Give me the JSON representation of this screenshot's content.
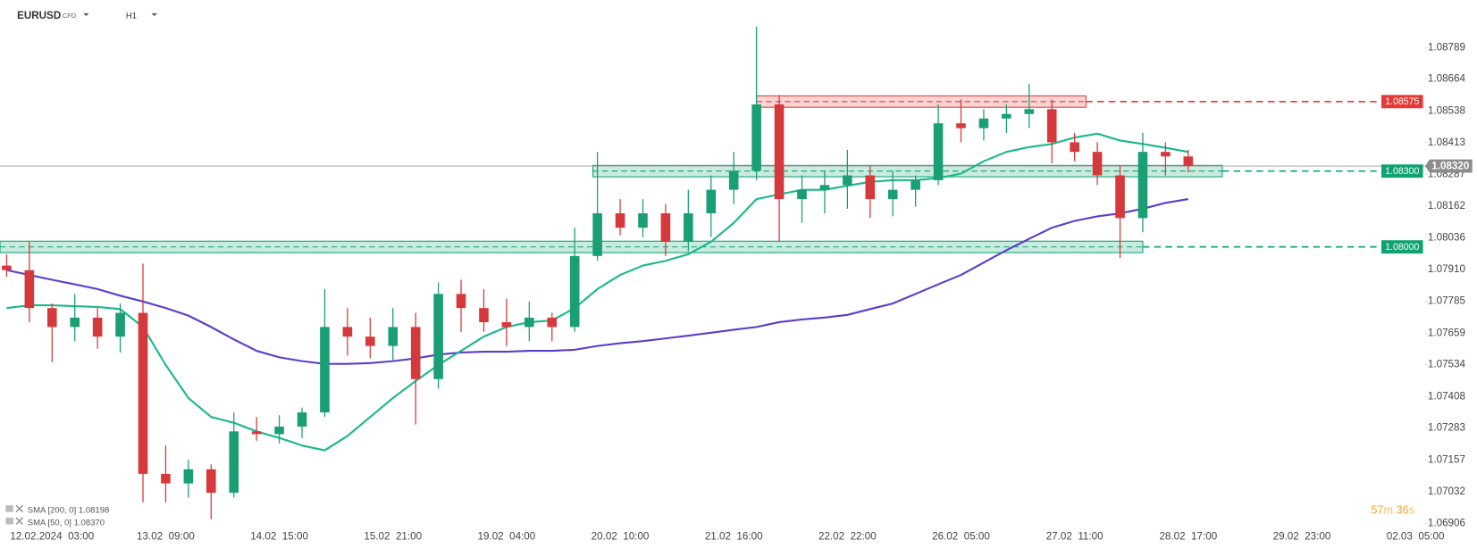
{
  "chart_data": {
    "type": "candlestick",
    "symbol": "EURUSD",
    "instrument": "CFD",
    "timeframe": "H1",
    "open": [
      1.07926,
      1.07908,
      1.07758,
      1.07683,
      1.0772,
      1.07645,
      1.07739,
      1.07102,
      1.07064,
      1.0712,
      1.07027,
      1.0727,
      1.07259,
      1.07289,
      1.07345,
      1.07683,
      1.07645,
      1.07608,
      1.07683,
      1.07477,
      1.07814,
      1.07758,
      1.07702,
      1.07683,
      1.0772,
      1.07683,
      1.07964,
      1.08133,
      1.08076,
      1.08133,
      1.0802,
      1.08133,
      1.08226,
      1.08301,
      1.08564,
      1.08189,
      1.08226,
      1.08245,
      1.08283,
      1.08189,
      1.08226,
      1.08264,
      1.08489,
      1.0847,
      1.08508,
      1.08526,
      1.08545,
      1.08414,
      1.08376,
      1.08283,
      1.08114,
      1.08376,
      1.08358
    ],
    "high": [
      1.07971,
      1.0802,
      1.07776,
      1.07814,
      1.07758,
      1.07776,
      1.07934,
      1.07214,
      1.07158,
      1.07139,
      1.07345,
      1.07327,
      1.07334,
      1.07364,
      1.07833,
      1.07758,
      1.0772,
      1.07758,
      1.07739,
      1.07859,
      1.0787,
      1.07833,
      1.07795,
      1.07784,
      1.07739,
      1.08076,
      1.08376,
      1.08189,
      1.08189,
      1.0817,
      1.08226,
      1.08283,
      1.08376,
      1.08872,
      1.08601,
      1.08283,
      1.08301,
      1.08384,
      1.0832,
      1.08301,
      1.08283,
      1.08564,
      1.08583,
      1.08545,
      1.08564,
      1.08646,
      1.08583,
      1.08451,
      1.08414,
      1.0832,
      1.08451,
      1.08414,
      1.08384
    ],
    "low": [
      1.07882,
      1.07702,
      1.07544,
      1.07627,
      1.07597,
      1.07582,
      1.06989,
      1.06989,
      1.07008,
      1.06922,
      1.07008,
      1.07233,
      1.07222,
      1.07244,
      1.07327,
      1.0757,
      1.07559,
      1.07552,
      1.07297,
      1.07439,
      1.07664,
      1.07664,
      1.07608,
      1.07627,
      1.07627,
      1.07664,
      1.07945,
      1.08046,
      1.08039,
      1.07964,
      1.07983,
      1.08039,
      1.0817,
      1.08264,
      1.0802,
      1.08095,
      1.08133,
      1.08151,
      1.08114,
      1.08121,
      1.08159,
      1.08245,
      1.08414,
      1.08421,
      1.08451,
      1.0847,
      1.08331,
      1.08339,
      1.08245,
      1.07956,
      1.08058,
      1.08283,
      1.08294
    ],
    "close": [
      1.07908,
      1.07758,
      1.07683,
      1.0772,
      1.07645,
      1.07739,
      1.07102,
      1.07064,
      1.0712,
      1.07027,
      1.0727,
      1.07259,
      1.07289,
      1.07345,
      1.07683,
      1.07645,
      1.07608,
      1.07683,
      1.07477,
      1.07814,
      1.07758,
      1.07702,
      1.07683,
      1.0772,
      1.07683,
      1.07964,
      1.08133,
      1.08076,
      1.08133,
      1.0802,
      1.08133,
      1.08226,
      1.08301,
      1.08564,
      1.08189,
      1.08226,
      1.08245,
      1.08283,
      1.08189,
      1.08226,
      1.08264,
      1.08489,
      1.0847,
      1.08508,
      1.08526,
      1.08545,
      1.08414,
      1.08376,
      1.08283,
      1.08114,
      1.08376,
      1.08358,
      1.0832
    ],
    "xtick_labels": [
      "12.02.2024  03:00",
      "13.02  09:00",
      "14.02  15:00",
      "15.02  21:00",
      "19.02  04:00",
      "20.02  10:00",
      "21.02  16:00",
      "22.02  22:00",
      "26.02  05:00",
      "27.02  11:00",
      "28.02  17:00",
      "29.02  23:00",
      "02.03  05:00"
    ],
    "ylim": [
      1.06876,
      1.08977
    ],
    "yticks": [
      1.08789,
      1.08664,
      1.08538,
      1.08413,
      1.08287,
      1.08162,
      1.08036,
      {
        "value": 1.0791,
        "label": "1.07910"
      },
      1.07785,
      1.07659,
      1.07534,
      1.07408,
      1.07283,
      1.07157,
      1.07032,
      1.06906
    ],
    "grid": false,
    "up_color": "#1a9e74",
    "down_color": "#d6393c",
    "series": [
      {
        "name": "SMA [200, 0]",
        "color": "#5b3ec8",
        "last": 1.08198,
        "values": [
          1.07908,
          1.07889,
          1.0787,
          1.07852,
          1.07833,
          1.07807,
          1.07784,
          1.07758,
          1.07728,
          1.07683,
          1.07634,
          1.07589,
          1.07563,
          1.07548,
          1.07537,
          1.07537,
          1.0754,
          1.07548,
          1.07559,
          1.07574,
          1.07582,
          1.07585,
          1.07585,
          1.07589,
          1.07589,
          1.07593,
          1.07608,
          1.07619,
          1.07627,
          1.07638,
          1.07649,
          1.0766,
          1.07672,
          1.07683,
          1.07702,
          1.07713,
          1.0772,
          1.07731,
          1.07754,
          1.07776,
          1.07814,
          1.07852,
          1.07889,
          1.07938,
          1.07987,
          1.08032,
          1.08076,
          1.08103,
          1.08121,
          1.08133,
          1.08151,
          1.08174,
          1.08189
        ]
      },
      {
        "name": "SMA [50, 0]",
        "color": "#1ab88a",
        "last": {
          "value": 1.0837,
          "label": "1.08370"
        },
        "values": [
          1.07758,
          1.07769,
          1.07769,
          1.07765,
          1.07762,
          1.07754,
          1.07683,
          1.07533,
          1.07402,
          1.07327,
          1.07304,
          1.0727,
          1.07244,
          1.07214,
          1.07195,
          1.07252,
          1.07327,
          1.07402,
          1.07469,
          1.07533,
          1.07589,
          1.07645,
          1.07683,
          1.07702,
          1.07709,
          1.07758,
          1.07833,
          1.07889,
          1.07926,
          1.07945,
          1.07971,
          1.0802,
          1.08095,
          1.08189,
          1.08208,
          1.08226,
          1.08226,
          1.08242,
          1.08257,
          1.08264,
          1.08264,
          1.08272,
          1.0829,
          1.08339,
          1.08376,
          1.08395,
          1.08407,
          1.08433,
          1.08448,
          1.08421,
          1.08407,
          1.08392,
          1.08376
        ]
      }
    ],
    "levels": [
      {
        "value": 1.08575,
        "color": "#e53935"
      },
      {
        "value": 1.083,
        "label": "1.08300",
        "color": "#0ea371"
      },
      {
        "value": 1.08,
        "label": "1.08000",
        "color": "#0ea371"
      }
    ],
    "current_price": {
      "value": 1.0832,
      "label": "1.08320"
    },
    "countdown": {
      "minutes": 57,
      "minutes_unit": "m",
      "seconds": 36,
      "seconds_unit": "s"
    }
  }
}
